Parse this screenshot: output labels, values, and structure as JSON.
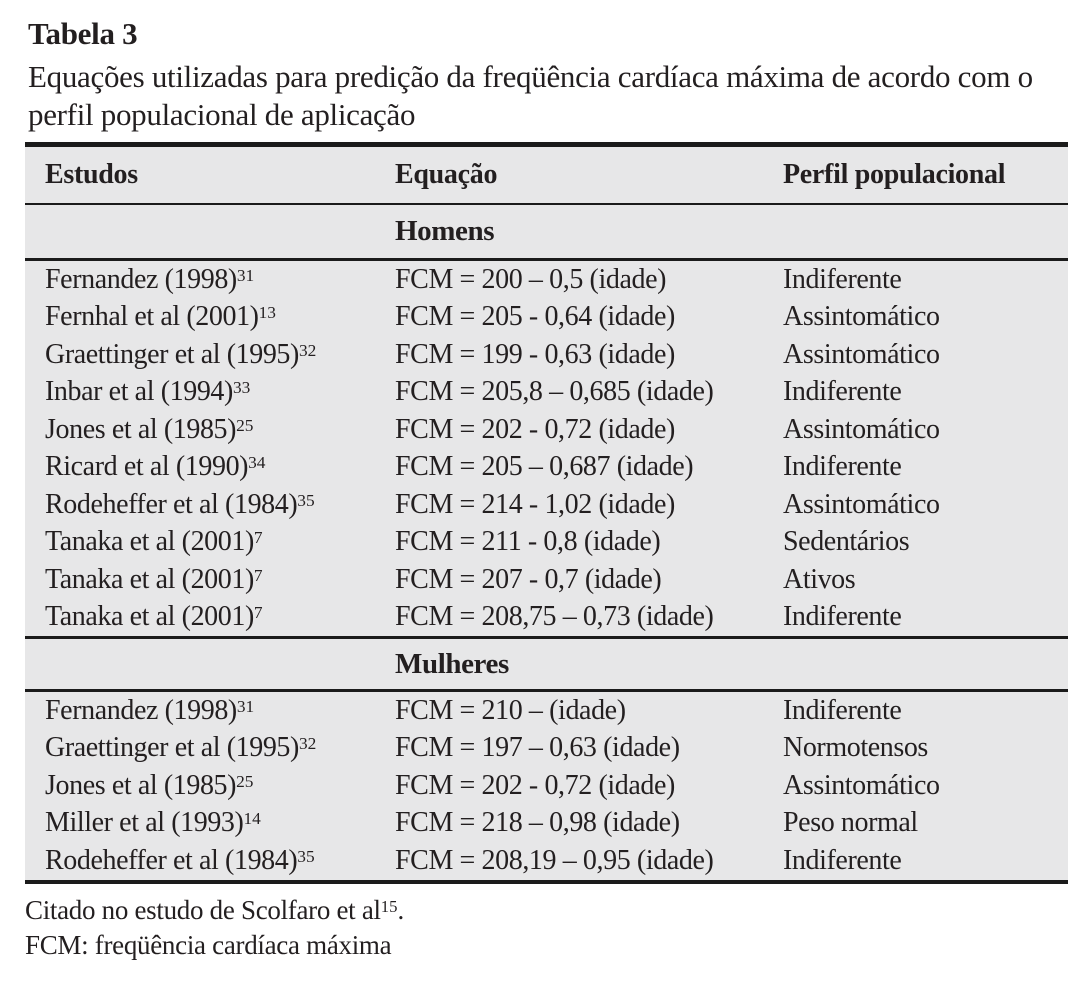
{
  "title": "Tabela 3",
  "caption": "Equações utilizadas para predição da freqüência cardíaca máxima de acordo com o perfil populacional de aplicação",
  "colors": {
    "table_background": "#e7e7e8",
    "text": "#231f20",
    "rule": "#1b1b1b"
  },
  "table": {
    "columns": [
      "Estudos",
      "Equação",
      "Perfil populacional"
    ],
    "sections": [
      {
        "label": "Homens",
        "rows": [
          {
            "study": "Fernandez (1998)",
            "ref": "31",
            "equation": "FCM = 200 – 0,5 (idade)",
            "profile": "Indiferente"
          },
          {
            "study": "Fernhal et al (2001)",
            "ref": "13",
            "equation": "FCM = 205 - 0,64 (idade)",
            "profile": "Assintomático"
          },
          {
            "study": "Graettinger et al (1995)",
            "ref": "32",
            "equation": "FCM = 199 - 0,63 (idade)",
            "profile": "Assintomático"
          },
          {
            "study": "Inbar et al (1994)",
            "ref": "33",
            "equation": "FCM = 205,8 – 0,685 (idade)",
            "profile": "Indiferente"
          },
          {
            "study": "Jones et al (1985)",
            "ref": "25",
            "equation": "FCM = 202 - 0,72 (idade)",
            "profile": "Assintomático"
          },
          {
            "study": "Ricard et al (1990)",
            "ref": "34",
            "equation": "FCM = 205 – 0,687 (idade)",
            "profile": "Indiferente"
          },
          {
            "study": "Rodeheffer et al (1984)",
            "ref": "35",
            "equation": "FCM = 214 - 1,02 (idade)",
            "profile": "Assintomático"
          },
          {
            "study": "Tanaka et al (2001)",
            "ref": "7",
            "equation": "FCM = 211 - 0,8 (idade)",
            "profile": "Sedentários"
          },
          {
            "study": "Tanaka et al (2001)",
            "ref": "7",
            "equation": "FCM = 207 - 0,7 (idade)",
            "profile": "Ativos"
          },
          {
            "study": "Tanaka et al (2001)",
            "ref": "7",
            "equation": "FCM = 208,75 – 0,73 (idade)",
            "profile": "Indiferente"
          }
        ]
      },
      {
        "label": "Mulheres",
        "rows": [
          {
            "study": "Fernandez (1998)",
            "ref": "31",
            "equation": "FCM = 210 – (idade)",
            "profile": "Indiferente"
          },
          {
            "study": "Graettinger et al (1995)",
            "ref": "32",
            "equation": "FCM = 197 – 0,63 (idade)",
            "profile": "Normotensos"
          },
          {
            "study": "Jones et al (1985)",
            "ref": "25",
            "equation": "FCM = 202 - 0,72 (idade)",
            "profile": "Assintomático"
          },
          {
            "study": "Miller et al (1993)",
            "ref": "14",
            "equation": "FCM = 218 – 0,98 (idade)",
            "profile": "Peso normal"
          },
          {
            "study": "Rodeheffer et al (1984)",
            "ref": "35",
            "equation": "FCM = 208,19 – 0,95 (idade)",
            "profile": "Indiferente"
          }
        ]
      }
    ]
  },
  "footnotes": [
    {
      "text": "Citado no estudo de Scolfaro et al",
      "ref": "15",
      "suffix": "."
    },
    {
      "text": "FCM: freqüência cardíaca máxima",
      "ref": "",
      "suffix": ""
    }
  ]
}
